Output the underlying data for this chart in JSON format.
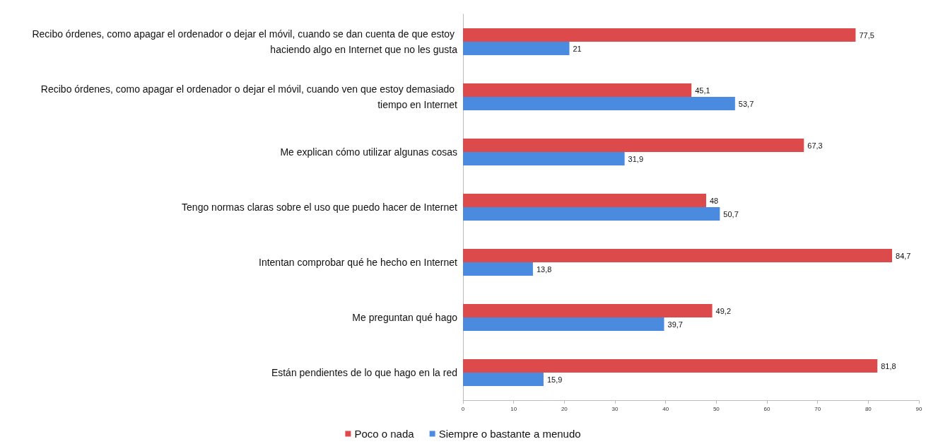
{
  "chart_data": {
    "type": "bar",
    "orientation": "horizontal",
    "categories": [
      "Recibo órdenes, como apagar el ordenador o dejar el móvil, cuando se dan cuenta de que estoy haciendo algo en Internet que no les gusta",
      "Recibo órdenes, como apagar el ordenador o dejar el móvil, cuando ven que estoy demasiado tiempo en Internet",
      "Me explican cómo utilizar algunas cosas",
      "Tengo normas claras sobre el uso que puedo hacer de Internet",
      "Intentan comprobar qué he hecho en Internet",
      "Me preguntan qué hago",
      "Están pendientes de lo que hago en la red"
    ],
    "series": [
      {
        "name": "Poco o nada",
        "color": "#dc4a4c",
        "values": [
          77.5,
          45.1,
          67.3,
          48,
          84.7,
          49.2,
          81.8
        ],
        "value_labels": [
          "77,5",
          "45,1",
          "67,3",
          "48",
          "84,7",
          "49,2",
          "81,8"
        ]
      },
      {
        "name": "Siempre o bastante a menudo",
        "color": "#4a8be0",
        "values": [
          21,
          53.7,
          31.9,
          50.7,
          13.8,
          39.7,
          15.9
        ],
        "value_labels": [
          "21",
          "53,7",
          "31,9",
          "50,7",
          "13,8",
          "39,7",
          "15,9"
        ]
      }
    ],
    "xlim": [
      0,
      90
    ],
    "xticks": [
      0,
      10,
      20,
      30,
      40,
      50,
      60,
      70,
      80,
      90
    ],
    "grid": false,
    "legend": "bottom"
  }
}
